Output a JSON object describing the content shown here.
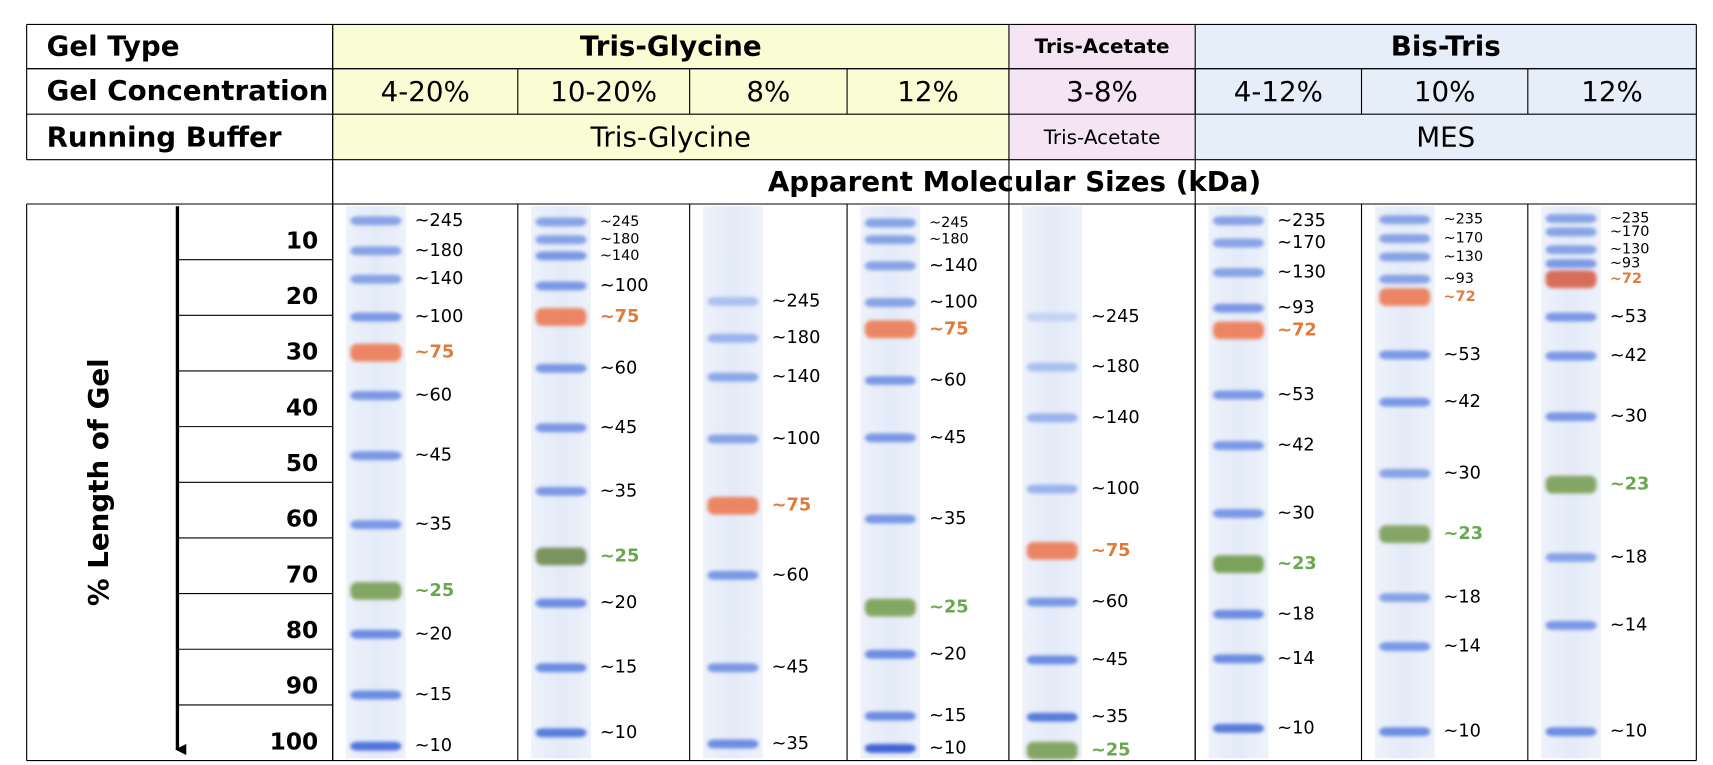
{
  "row_labels": [
    "Gel Type",
    "Gel Concentration",
    "Running Buffer"
  ],
  "sizes_title": "Apparent Molecular Sizes (kDa)",
  "axis": {
    "label": "% Length of Gel",
    "ylim": [
      0,
      100
    ],
    "yticks": [
      10,
      20,
      30,
      40,
      50,
      60,
      70,
      80,
      90,
      100
    ]
  },
  "groups": [
    {
      "gel_type": "Tris-Glycine",
      "running_buffer": "Tris-Glycine",
      "background": "#fafcd4",
      "lanes": [
        {
          "concentration": "4-20%",
          "markers": [
            {
              "label": "~245",
              "position": 6.2,
              "color": "#7d9be3",
              "label_color": "#000000"
            },
            {
              "label": "~180",
              "position": 11.6,
              "color": "#7d9be3",
              "label_color": "#000000"
            },
            {
              "label": "~140",
              "position": 16.7,
              "color": "#7d9be3",
              "label_color": "#000000"
            },
            {
              "label": "~100",
              "position": 23.5,
              "color": "#6f8fe3",
              "label_color": "#000000"
            },
            {
              "label": "~75",
              "position": 29.9,
              "color": "#ec7a52",
              "label_color": "#e07b39"
            },
            {
              "label": "~60",
              "position": 37.6,
              "color": "#6f8fe3",
              "label_color": "#000000"
            },
            {
              "label": "~45",
              "position": 48.4,
              "color": "#6f8fe3",
              "label_color": "#000000"
            },
            {
              "label": "~35",
              "position": 60.8,
              "color": "#6f8fe3",
              "label_color": "#000000"
            },
            {
              "label": "~25",
              "position": 72.7,
              "color": "#7a9f55",
              "label_color": "#6aa84f"
            },
            {
              "label": "~20",
              "position": 80.5,
              "color": "#5f82e0",
              "label_color": "#000000"
            },
            {
              "label": "~15",
              "position": 91.4,
              "color": "#5f82e0",
              "label_color": "#000000"
            },
            {
              "label": "~10",
              "position": 100.6,
              "color": "#3f68d8",
              "label_color": "#000000"
            }
          ]
        },
        {
          "concentration": "10-20%",
          "markers": [
            {
              "label": "~245",
              "position": 6.4,
              "color": "#7d9be3",
              "label_color": "#000000"
            },
            {
              "label": "~180",
              "position": 9.6,
              "color": "#7d9be3",
              "label_color": "#000000"
            },
            {
              "label": "~140",
              "position": 12.5,
              "color": "#6f8fe3",
              "label_color": "#000000"
            },
            {
              "label": "~100",
              "position": 17.9,
              "color": "#6f8fe3",
              "label_color": "#000000"
            },
            {
              "label": "~75",
              "position": 23.5,
              "color": "#ec7a52",
              "label_color": "#e07b39"
            },
            {
              "label": "~60",
              "position": 32.7,
              "color": "#6f8fe3",
              "label_color": "#000000"
            },
            {
              "label": "~45",
              "position": 43.4,
              "color": "#6f8fe3",
              "label_color": "#000000"
            },
            {
              "label": "~35",
              "position": 54.8,
              "color": "#6f8fe3",
              "label_color": "#000000"
            },
            {
              "label": "~25",
              "position": 66.5,
              "color": "#6f8a50",
              "label_color": "#6aa84f"
            },
            {
              "label": "~20",
              "position": 74.9,
              "color": "#5f82e0",
              "label_color": "#000000"
            },
            {
              "label": "~15",
              "position": 86.5,
              "color": "#5f82e0",
              "label_color": "#000000"
            },
            {
              "label": "~10",
              "position": 98.2,
              "color": "#4a70d8",
              "label_color": "#000000"
            }
          ]
        },
        {
          "concentration": "8%",
          "markers": [
            {
              "label": "~245",
              "position": 20.7,
              "color": "#a6bcef",
              "label_color": "#000000"
            },
            {
              "label": "~180",
              "position": 27.3,
              "color": "#92adec",
              "label_color": "#000000"
            },
            {
              "label": "~140",
              "position": 34.3,
              "color": "#82a0e8",
              "label_color": "#000000"
            },
            {
              "label": "~100",
              "position": 45.4,
              "color": "#7d9be3",
              "label_color": "#000000"
            },
            {
              "label": "~75",
              "position": 57.4,
              "color": "#ec7a52",
              "label_color": "#e07b39"
            },
            {
              "label": "~60",
              "position": 69.9,
              "color": "#6f8fe3",
              "label_color": "#000000"
            },
            {
              "label": "~45",
              "position": 86.5,
              "color": "#6f8fe3",
              "label_color": "#000000"
            },
            {
              "label": "~35",
              "position": 100.2,
              "color": "#5f82e0",
              "label_color": "#000000"
            }
          ]
        },
        {
          "concentration": "12%",
          "markers": [
            {
              "label": "~245",
              "position": 6.6,
              "color": "#7d9be3",
              "label_color": "#000000"
            },
            {
              "label": "~180",
              "position": 9.6,
              "color": "#7d9be3",
              "label_color": "#000000"
            },
            {
              "label": "~140",
              "position": 14.3,
              "color": "#7d9be3",
              "label_color": "#000000"
            },
            {
              "label": "~100",
              "position": 20.9,
              "color": "#7d9be3",
              "label_color": "#000000"
            },
            {
              "label": "~75",
              "position": 25.7,
              "color": "#ec7a52",
              "label_color": "#e07b39"
            },
            {
              "label": "~60",
              "position": 34.9,
              "color": "#6f8fe3",
              "label_color": "#000000"
            },
            {
              "label": "~45",
              "position": 45.2,
              "color": "#6f8fe3",
              "label_color": "#000000"
            },
            {
              "label": "~35",
              "position": 59.8,
              "color": "#6f8fe3",
              "label_color": "#000000"
            },
            {
              "label": "~25",
              "position": 75.7,
              "color": "#7a9f55",
              "label_color": "#6aa84f"
            },
            {
              "label": "~20",
              "position": 84.1,
              "color": "#5f82e0",
              "label_color": "#000000"
            },
            {
              "label": "~15",
              "position": 95.2,
              "color": "#5f82e0",
              "label_color": "#000000"
            },
            {
              "label": "~10",
              "position": 101.0,
              "color": "#2f55d0",
              "label_color": "#000000"
            }
          ]
        }
      ]
    },
    {
      "gel_type": "Tris-Acetate",
      "running_buffer": "Tris-Acetate",
      "background": "#f4e4f4",
      "lanes": [
        {
          "concentration": "3-8%",
          "markers": [
            {
              "label": "~245",
              "position": 23.5,
              "color": "#c2d2f3",
              "label_color": "#000000"
            },
            {
              "label": "~180",
              "position": 32.5,
              "color": "#a6bcef",
              "label_color": "#000000"
            },
            {
              "label": "~140",
              "position": 41.6,
              "color": "#92adec",
              "label_color": "#000000"
            },
            {
              "label": "~100",
              "position": 54.4,
              "color": "#92adec",
              "label_color": "#000000"
            },
            {
              "label": "~75",
              "position": 65.5,
              "color": "#ec7a52",
              "label_color": "#e07b39"
            },
            {
              "label": "~60",
              "position": 74.7,
              "color": "#6f8fe3",
              "label_color": "#000000"
            },
            {
              "label": "~45",
              "position": 85.1,
              "color": "#5f82e0",
              "label_color": "#000000"
            },
            {
              "label": "~35",
              "position": 95.4,
              "color": "#4a70d8",
              "label_color": "#000000"
            },
            {
              "label": "~25",
              "position": 101.4,
              "color": "#7a9f55",
              "label_color": "#6aa84f"
            }
          ]
        }
      ]
    },
    {
      "gel_type": "Bis-Tris",
      "running_buffer": "MES",
      "background": "#e6eef9",
      "lanes": [
        {
          "concentration": "4-12%",
          "markers": [
            {
              "label": "~235",
              "position": 6.2,
              "color": "#7d9be3",
              "label_color": "#000000"
            },
            {
              "label": "~170",
              "position": 10.2,
              "color": "#7d9be3",
              "label_color": "#000000"
            },
            {
              "label": "~130",
              "position": 15.5,
              "color": "#7d9be3",
              "label_color": "#000000"
            },
            {
              "label": "~93",
              "position": 21.9,
              "color": "#6f8fe3",
              "label_color": "#000000"
            },
            {
              "label": "~72",
              "position": 25.9,
              "color": "#ec7a52",
              "label_color": "#e07b39"
            },
            {
              "label": "~53",
              "position": 37.5,
              "color": "#6f8fe3",
              "label_color": "#000000"
            },
            {
              "label": "~42",
              "position": 46.6,
              "color": "#6f8fe3",
              "label_color": "#000000"
            },
            {
              "label": "~30",
              "position": 58.8,
              "color": "#6f8fe3",
              "label_color": "#000000"
            },
            {
              "label": "~23",
              "position": 67.9,
              "color": "#6f9a4a",
              "label_color": "#6aa84f"
            },
            {
              "label": "~18",
              "position": 76.9,
              "color": "#5f82e0",
              "label_color": "#000000"
            },
            {
              "label": "~14",
              "position": 84.9,
              "color": "#5f82e0",
              "label_color": "#000000"
            },
            {
              "label": "~10",
              "position": 97.4,
              "color": "#4a70d8",
              "label_color": "#000000"
            }
          ]
        },
        {
          "concentration": "10%",
          "markers": [
            {
              "label": "~235",
              "position": 6.0,
              "color": "#7d9be3",
              "label_color": "#000000"
            },
            {
              "label": "~170",
              "position": 9.4,
              "color": "#7d9be3",
              "label_color": "#000000"
            },
            {
              "label": "~130",
              "position": 12.7,
              "color": "#7d9be3",
              "label_color": "#000000"
            },
            {
              "label": "~93",
              "position": 16.7,
              "color": "#7d9be3",
              "label_color": "#000000"
            },
            {
              "label": "~72",
              "position": 19.9,
              "color": "#ec7a52",
              "label_color": "#e07b39"
            },
            {
              "label": "~53",
              "position": 30.3,
              "color": "#6f8fe3",
              "label_color": "#000000"
            },
            {
              "label": "~42",
              "position": 38.8,
              "color": "#6f8fe3",
              "label_color": "#000000"
            },
            {
              "label": "~30",
              "position": 51.6,
              "color": "#7d9be3",
              "label_color": "#000000"
            },
            {
              "label": "~23",
              "position": 62.5,
              "color": "#7a9f55",
              "label_color": "#6aa84f"
            },
            {
              "label": "~18",
              "position": 73.9,
              "color": "#7d9be3",
              "label_color": "#000000"
            },
            {
              "label": "~14",
              "position": 82.7,
              "color": "#6f8fe3",
              "label_color": "#000000"
            },
            {
              "label": "~10",
              "position": 98.0,
              "color": "#5f82e0",
              "label_color": "#000000"
            }
          ]
        },
        {
          "concentration": "12%",
          "markers": [
            {
              "label": "~235",
              "position": 5.8,
              "color": "#7d9be3",
              "label_color": "#000000"
            },
            {
              "label": "~170",
              "position": 8.2,
              "color": "#7d9be3",
              "label_color": "#000000"
            },
            {
              "label": "~130",
              "position": 11.4,
              "color": "#7d9be3",
              "label_color": "#000000"
            },
            {
              "label": "~93",
              "position": 13.9,
              "color": "#6f8fe3",
              "label_color": "#000000"
            },
            {
              "label": "~72",
              "position": 16.7,
              "color": "#d8604a",
              "label_color": "#e07b39"
            },
            {
              "label": "~53",
              "position": 23.5,
              "color": "#6f8fe3",
              "label_color": "#000000"
            },
            {
              "label": "~42",
              "position": 30.5,
              "color": "#6f8fe3",
              "label_color": "#000000"
            },
            {
              "label": "~30",
              "position": 41.4,
              "color": "#6f8fe3",
              "label_color": "#000000"
            },
            {
              "label": "~23",
              "position": 53.6,
              "color": "#7a9f55",
              "label_color": "#6aa84f"
            },
            {
              "label": "~18",
              "position": 66.7,
              "color": "#7d9be3",
              "label_color": "#000000"
            },
            {
              "label": "~14",
              "position": 78.9,
              "color": "#6f8fe3",
              "label_color": "#000000"
            },
            {
              "label": "~10",
              "position": 98.0,
              "color": "#5f82e0",
              "label_color": "#000000"
            }
          ]
        }
      ]
    }
  ]
}
